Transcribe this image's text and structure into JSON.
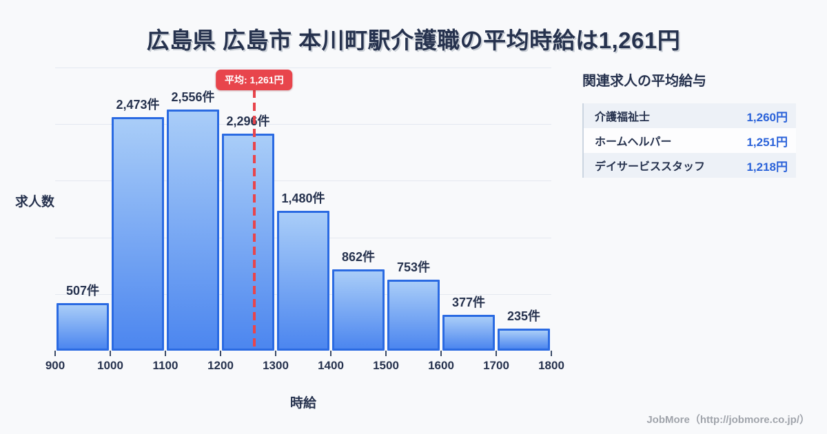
{
  "title": "広島県 広島市 本川町駅介護職の平均時給は1,261円",
  "chart_data": {
    "type": "bar",
    "title": "広島県 広島市 本川町駅介護職の平均時給は1,261円",
    "xlabel": "時給",
    "ylabel": "求人数",
    "bin_edges": [
      900,
      1000,
      1100,
      1200,
      1300,
      1400,
      1500,
      1600,
      1700,
      1800
    ],
    "x_tick_labels": [
      "900",
      "1000",
      "1100",
      "1200",
      "1300",
      "1400",
      "1500",
      "1600",
      "1700",
      "1800"
    ],
    "values": [
      507,
      2473,
      2556,
      2296,
      1480,
      862,
      753,
      377,
      235
    ],
    "bar_labels": [
      "507件",
      "2,473件",
      "2,556件",
      "2,296件",
      "1,480件",
      "862件",
      "753件",
      "377件",
      "235件"
    ],
    "ylim": [
      0,
      3000
    ],
    "grid_step": 600,
    "grid": true,
    "legend": false,
    "average": {
      "value": 1261,
      "badge_label": "平均: 1,261円"
    }
  },
  "side_panel": {
    "title": "関連求人の平均給与",
    "rows": [
      {
        "label": "介護福祉士",
        "value": "1,260円"
      },
      {
        "label": "ホームヘルパー",
        "value": "1,251円"
      },
      {
        "label": "デイサービススタッフ",
        "value": "1,218円"
      }
    ]
  },
  "footer": {
    "credit": "JobMore（http://jobmore.co.jp/）"
  },
  "colors": {
    "bg": "#f8f9fb",
    "navy": "#26324e",
    "red": "#e8454c",
    "bar_top": "#a9cdf8",
    "bar_bottom": "#4c86ef",
    "bar_border": "#2a6ae2",
    "grid": "#e4e8f0",
    "value_blue": "#2a62d9",
    "row_alt": "#edf1f7",
    "footer_gray": "#a0a4ab"
  }
}
